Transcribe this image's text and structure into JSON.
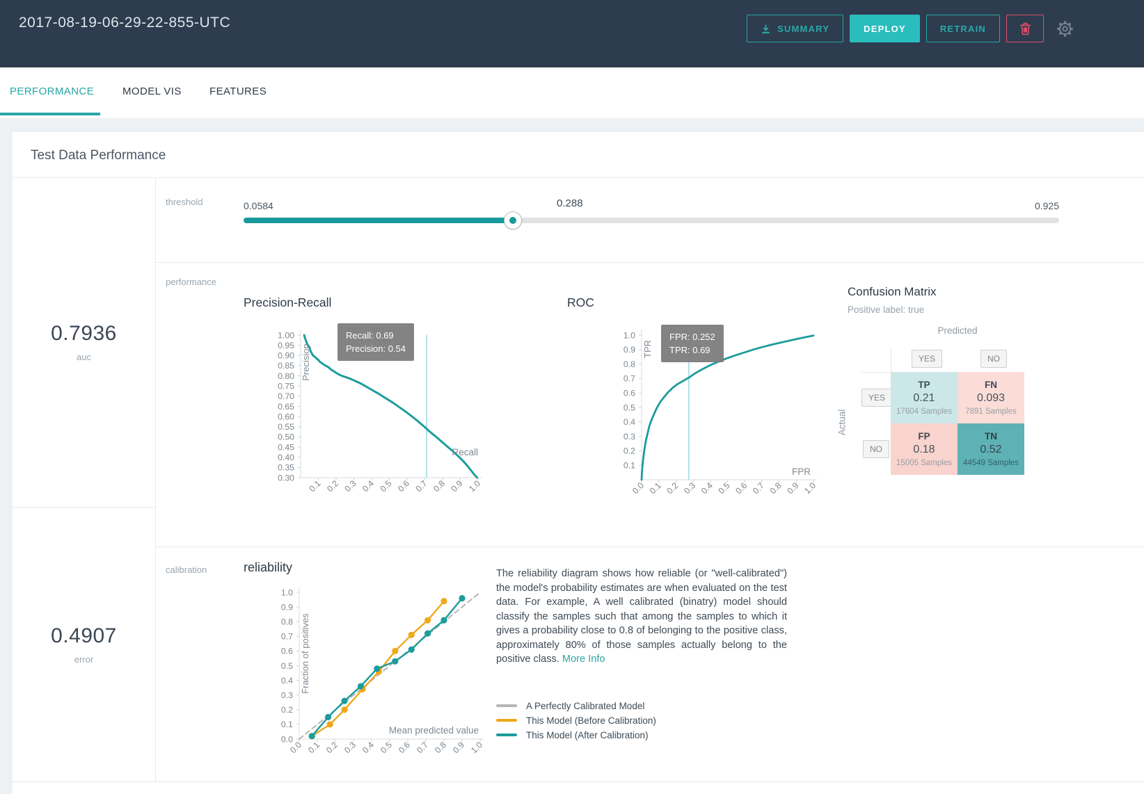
{
  "header": {
    "title": "2017-08-19-06-29-22-855-UTC",
    "buttons": {
      "summary": "SUMMARY",
      "deploy": "DEPLOY",
      "retrain": "RETRAIN"
    }
  },
  "tabs": [
    {
      "label": "PERFORMANCE",
      "active": true
    },
    {
      "label": "MODEL VIS",
      "active": false
    },
    {
      "label": "FEATURES",
      "active": false
    }
  ],
  "card_title": "Test Data Performance",
  "metrics": {
    "auc": {
      "value": "0.7936",
      "label": "auc"
    },
    "error": {
      "value": "0.4907",
      "label": "error"
    }
  },
  "threshold": {
    "label": "threshold",
    "min": "0.0584",
    "value": "0.288",
    "max": "0.925",
    "fill_pct": 33,
    "value_label_pct": 40
  },
  "sections": {
    "performance": "performance",
    "calibration": "calibration"
  },
  "colors": {
    "accent_teal": "#29a6a6",
    "deploy_bg": "#2abdbd",
    "danger_pink": "#e0506d",
    "chart_teal": "#1d9c9c",
    "chart_orange": "#f0a81c",
    "perfect_gray": "#b5b5b5",
    "marker_blue": "#9fdbe5",
    "tooltip_gray": "#7c7c7c"
  },
  "chart_data": [
    {
      "type": "line",
      "title": "Precision-Recall",
      "xlabel": "Recall",
      "ylabel": "Precision",
      "xlim": [
        0,
        1.0
      ],
      "ylim": [
        0.3,
        1.0
      ],
      "xticks": [
        "0.1",
        "0.2",
        "0.3",
        "0.4",
        "0.5",
        "0.6",
        "0.7",
        "0.8",
        "0.9",
        "1.0"
      ],
      "yticks": [
        "1.00",
        "0.95",
        "0.90",
        "0.85",
        "0.80",
        "0.75",
        "0.70",
        "0.65",
        "0.60",
        "0.55",
        "0.50",
        "0.45",
        "0.40",
        "0.35",
        "0.30"
      ],
      "marker_x": 0.71,
      "tooltip": [
        "Recall: 0.69",
        "Precision: 0.54"
      ],
      "legend_position": "none",
      "grid": false,
      "series": [
        {
          "name": "precision-recall-curve",
          "color": "#1d9c9c",
          "points": [
            [
              0.02,
              1.0
            ],
            [
              0.025,
              0.985
            ],
            [
              0.03,
              0.972
            ],
            [
              0.035,
              0.96
            ],
            [
              0.04,
              0.952
            ],
            [
              0.05,
              0.94
            ],
            [
              0.055,
              0.925
            ],
            [
              0.06,
              0.915
            ],
            [
              0.07,
              0.9
            ],
            [
              0.08,
              0.893
            ],
            [
              0.09,
              0.885
            ],
            [
              0.1,
              0.878
            ],
            [
              0.11,
              0.868
            ],
            [
              0.12,
              0.862
            ],
            [
              0.13,
              0.856
            ],
            [
              0.14,
              0.85
            ],
            [
              0.15,
              0.846
            ],
            [
              0.16,
              0.84
            ],
            [
              0.17,
              0.832
            ],
            [
              0.18,
              0.826
            ],
            [
              0.19,
              0.821
            ],
            [
              0.2,
              0.815
            ],
            [
              0.22,
              0.805
            ],
            [
              0.24,
              0.798
            ],
            [
              0.26,
              0.792
            ],
            [
              0.28,
              0.786
            ],
            [
              0.3,
              0.778
            ],
            [
              0.32,
              0.77
            ],
            [
              0.34,
              0.762
            ],
            [
              0.36,
              0.752
            ],
            [
              0.38,
              0.742
            ],
            [
              0.4,
              0.732
            ],
            [
              0.42,
              0.722
            ],
            [
              0.44,
              0.712
            ],
            [
              0.46,
              0.701
            ],
            [
              0.48,
              0.69
            ],
            [
              0.5,
              0.679
            ],
            [
              0.52,
              0.668
            ],
            [
              0.54,
              0.656
            ],
            [
              0.56,
              0.644
            ],
            [
              0.58,
              0.632
            ],
            [
              0.6,
              0.619
            ],
            [
              0.62,
              0.606
            ],
            [
              0.64,
              0.592
            ],
            [
              0.66,
              0.578
            ],
            [
              0.68,
              0.563
            ],
            [
              0.7,
              0.548
            ],
            [
              0.72,
              0.532
            ],
            [
              0.74,
              0.517
            ],
            [
              0.76,
              0.503
            ],
            [
              0.78,
              0.488
            ],
            [
              0.8,
              0.473
            ],
            [
              0.82,
              0.458
            ],
            [
              0.84,
              0.443
            ],
            [
              0.86,
              0.428
            ],
            [
              0.88,
              0.412
            ],
            [
              0.9,
              0.396
            ],
            [
              0.92,
              0.378
            ],
            [
              0.94,
              0.358
            ],
            [
              0.96,
              0.336
            ],
            [
              0.98,
              0.314
            ],
            [
              0.995,
              0.3
            ]
          ]
        }
      ]
    },
    {
      "type": "line",
      "title": "ROC",
      "xlabel": "FPR",
      "ylabel": "TPR",
      "xlim": [
        0,
        1.0
      ],
      "ylim": [
        0,
        1.0
      ],
      "xticks": [
        "0.0",
        "0.1",
        "0.2",
        "0.3",
        "0.4",
        "0.5",
        "0.6",
        "0.7",
        "0.8",
        "0.9",
        "1.0"
      ],
      "yticks": [
        "1.0",
        "0.9",
        "0.8",
        "0.7",
        "0.6",
        "0.5",
        "0.4",
        "0.3",
        "0.2",
        "0.1"
      ],
      "marker_x": 0.275,
      "tooltip": [
        "FPR: 0.252",
        "TPR: 0.69"
      ],
      "legend_position": "none",
      "grid": false,
      "series": [
        {
          "name": "roc-curve",
          "color": "#1d9c9c",
          "points": [
            [
              0,
              0
            ],
            [
              0.002,
              0.05
            ],
            [
              0.005,
              0.09
            ],
            [
              0.008,
              0.13
            ],
            [
              0.012,
              0.17
            ],
            [
              0.018,
              0.22
            ],
            [
              0.025,
              0.27
            ],
            [
              0.035,
              0.32
            ],
            [
              0.045,
              0.37
            ],
            [
              0.06,
              0.42
            ],
            [
              0.075,
              0.46
            ],
            [
              0.09,
              0.5
            ],
            [
              0.11,
              0.54
            ],
            [
              0.13,
              0.57
            ],
            [
              0.15,
              0.6
            ],
            [
              0.18,
              0.635
            ],
            [
              0.21,
              0.662
            ],
            [
              0.252,
              0.69
            ],
            [
              0.28,
              0.71
            ],
            [
              0.31,
              0.735
            ],
            [
              0.35,
              0.762
            ],
            [
              0.4,
              0.793
            ],
            [
              0.45,
              0.818
            ],
            [
              0.5,
              0.842
            ],
            [
              0.55,
              0.862
            ],
            [
              0.6,
              0.881
            ],
            [
              0.65,
              0.9
            ],
            [
              0.7,
              0.917
            ],
            [
              0.75,
              0.932
            ],
            [
              0.8,
              0.946
            ],
            [
              0.85,
              0.959
            ],
            [
              0.9,
              0.972
            ],
            [
              0.95,
              0.985
            ],
            [
              1.0,
              0.997
            ]
          ]
        }
      ]
    },
    {
      "type": "line",
      "title": "reliability",
      "xlabel": "Mean predicted value",
      "ylabel": "Fraction of positives",
      "xlim": [
        0,
        1.0
      ],
      "ylim": [
        0,
        1.0
      ],
      "xticks": [
        "0.0",
        "0.1",
        "0.2",
        "0.3",
        "0.4",
        "0.5",
        "0.6",
        "0.7",
        "0.8",
        "0.9",
        "1.0"
      ],
      "yticks": [
        "1.0",
        "0.9",
        "0.8",
        "0.7",
        "0.6",
        "0.5",
        "0.4",
        "0.3",
        "0.2",
        "0.1",
        "0.0"
      ],
      "legend_position": "right-bottom",
      "grid": false,
      "series": [
        {
          "name": "A Perfectly Calibrated Model",
          "color": "#b5b5b5",
          "dashed": true,
          "points": [
            [
              0.0,
              0.0
            ],
            [
              1.0,
              1.0
            ]
          ]
        },
        {
          "name": "This Model (Before Calibration)",
          "color": "#f0a81c",
          "dots": true,
          "points": [
            [
              0.07,
              0.02
            ],
            [
              0.17,
              0.1
            ],
            [
              0.25,
              0.2
            ],
            [
              0.35,
              0.34
            ],
            [
              0.44,
              0.46
            ],
            [
              0.53,
              0.6
            ],
            [
              0.62,
              0.71
            ],
            [
              0.71,
              0.81
            ],
            [
              0.8,
              0.94
            ]
          ]
        },
        {
          "name": "This Model (After Calibration)",
          "color": "#1d9c9c",
          "dots": true,
          "points": [
            [
              0.07,
              0.02
            ],
            [
              0.16,
              0.15
            ],
            [
              0.25,
              0.26
            ],
            [
              0.34,
              0.36
            ],
            [
              0.43,
              0.48
            ],
            [
              0.53,
              0.53
            ],
            [
              0.62,
              0.61
            ],
            [
              0.71,
              0.72
            ],
            [
              0.8,
              0.81
            ],
            [
              0.9,
              0.96
            ]
          ]
        }
      ]
    }
  ],
  "confusion_matrix": {
    "title": "Confusion Matrix",
    "subtitle": "Positive label: true",
    "predicted_label": "Predicted",
    "actual_label": "Actual",
    "col_headers": [
      "YES",
      "NO"
    ],
    "row_headers": [
      "YES",
      "NO"
    ],
    "cells": {
      "tp": {
        "label": "TP",
        "value": "0.21",
        "samples": "17604 Samples",
        "color": "#cbe7e8"
      },
      "fn": {
        "label": "FN",
        "value": "0.093",
        "samples": "7891 Samples",
        "color": "#fbdcd6"
      },
      "fp": {
        "label": "FP",
        "value": "0.18",
        "samples": "15005 Samples",
        "color": "#f9d3cd"
      },
      "tn": {
        "label": "TN",
        "value": "0.52",
        "samples": "44549 Samples",
        "color": "#5eb2b5"
      }
    }
  },
  "calibration": {
    "description": "The reliability diagram shows how reliable (or \"well-calibrated\") the model's probability estimates are when evaluated on the test data. For example, A well calibrated (binatry) model should classify the samples such that among the samples to which it gives a probability close to 0.8 of belonging to the positive class, approximately 80% of those samples actually belong to the positive class.",
    "more_info": "More Info"
  }
}
